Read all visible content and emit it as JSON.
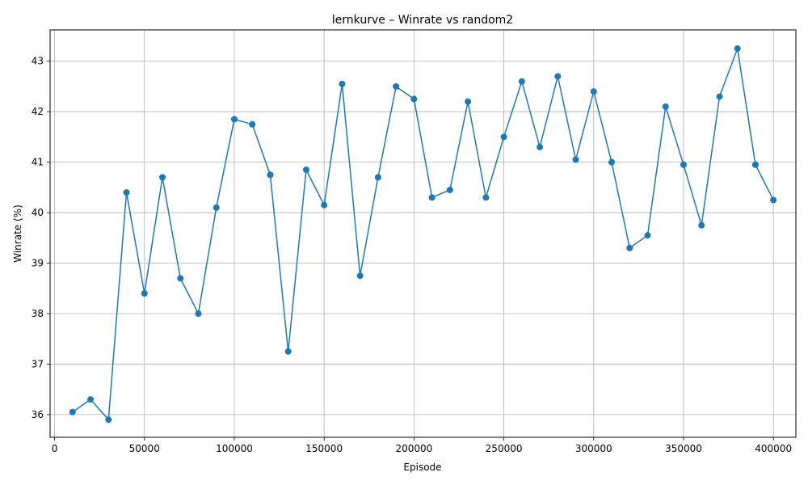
{
  "chart_data": {
    "type": "line",
    "title": "lernkurve – Winrate vs random2",
    "xlabel": "Episode",
    "ylabel": "Winrate (%)",
    "xlim": [
      -2500,
      412500
    ],
    "ylim": [
      35.55,
      43.62
    ],
    "x_ticks": [
      0,
      50000,
      100000,
      150000,
      200000,
      250000,
      300000,
      350000,
      400000
    ],
    "y_ticks": [
      36,
      37,
      38,
      39,
      40,
      41,
      42,
      43
    ],
    "grid": true,
    "line_color": "#1f77b4",
    "marker": "circle",
    "series": [
      {
        "x": [
          10000,
          20000,
          30000,
          40000,
          50000,
          60000,
          70000,
          80000,
          90000,
          100000,
          110000,
          120000,
          130000,
          140000,
          150000,
          160000,
          170000,
          180000,
          190000,
          200000,
          210000,
          220000,
          230000,
          240000,
          250000,
          260000,
          270000,
          280000,
          290000,
          300000,
          310000,
          320000,
          330000,
          340000,
          350000,
          360000,
          370000,
          380000,
          390000,
          400000
        ],
        "values": [
          36.05,
          36.3,
          35.9,
          40.4,
          38.4,
          40.7,
          38.7,
          38.0,
          40.1,
          41.85,
          41.75,
          40.75,
          37.25,
          40.85,
          40.15,
          42.55,
          38.75,
          40.7,
          42.5,
          42.25,
          40.3,
          40.45,
          42.2,
          40.3,
          41.5,
          42.6,
          41.3,
          42.7,
          41.05,
          42.4,
          41.0,
          39.3,
          39.55,
          42.1,
          40.95,
          39.75,
          42.3,
          43.25,
          40.95,
          40.25
        ]
      }
    ]
  }
}
